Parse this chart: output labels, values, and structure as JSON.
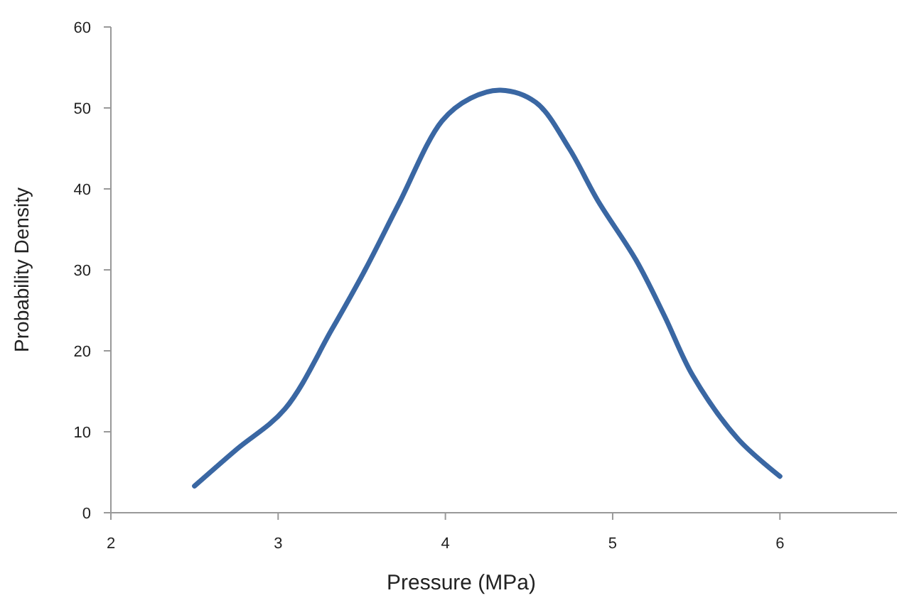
{
  "chart_data": {
    "type": "line",
    "xlabel": "Pressure (MPa)",
    "ylabel": "Probability Density",
    "xlim": [
      2,
      6.7
    ],
    "xticks": [
      2,
      3,
      4,
      5,
      6
    ],
    "ylim": [
      0,
      60
    ],
    "yticks": [
      0,
      10,
      20,
      30,
      40,
      50,
      60
    ],
    "grid": false,
    "marker": "none",
    "line_style": "solid",
    "series": [
      {
        "color": "#3a67a3",
        "x": [
          2.5,
          2.75,
          3.04,
          3.32,
          3.52,
          3.72,
          3.98,
          4.15,
          4.33,
          4.54,
          4.74,
          4.91,
          5.14,
          5.31,
          5.48,
          5.75,
          6
        ],
        "values": [
          3.3,
          7.8,
          12.8,
          22.6,
          30,
          38.1,
          48.4,
          51.2,
          52.2,
          50.7,
          45,
          38.6,
          31.2,
          24.3,
          16.9,
          9.1,
          4.5
        ]
      }
    ]
  }
}
